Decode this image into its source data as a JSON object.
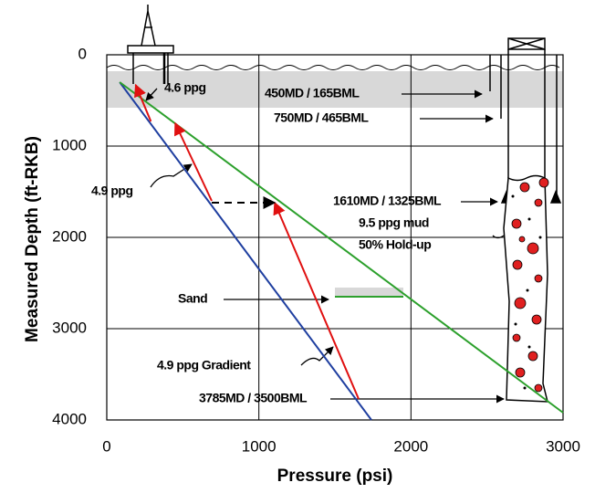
{
  "chart_data": {
    "type": "line",
    "x_label": "Pressure (psi)",
    "y_label": "Measured Depth (ft-RKB)",
    "xlim": [
      0,
      3000
    ],
    "xticks": [
      0,
      1000,
      2000,
      3000
    ],
    "ylim": [
      0,
      4000
    ],
    "yticks": [
      0,
      1000,
      2000,
      3000,
      4000
    ],
    "y_inverted": true,
    "grid": true,
    "series": [
      {
        "color": "#1f3fa0",
        "x": [
          85,
          1740
        ],
        "values": [
          300,
          4000
        ]
      },
      {
        "color": "#2ca02c",
        "x": [
          85,
          3000
        ],
        "values": [
          300,
          3920
        ]
      },
      {
        "color": "#2ca02c",
        "x": [
          1500,
          1950
        ],
        "values": [
          2650,
          2650
        ]
      },
      {
        "color": "#e01010",
        "x": [
          1656,
          1104
        ],
        "values": [
          3770,
          1620
        ],
        "arrow": true
      },
      {
        "color": "#e01010",
        "x": [
          690,
          450
        ],
        "values": [
          1600,
          750
        ],
        "arrow": true
      },
      {
        "color": "#e01010",
        "x": [
          290,
          190
        ],
        "values": [
          730,
          330
        ],
        "arrow": true
      },
      {
        "color": "#000000",
        "x": [
          690,
          1104
        ],
        "values": [
          1620,
          1620
        ],
        "dashed": true,
        "arrow": true
      }
    ],
    "annotations": [
      "4.6 ppg",
      "450MD / 165BML",
      "750MD / 465BML",
      "4.9 ppg",
      "1610MD / 1325BML",
      "9.5 ppg mud",
      "50% Hold-up",
      "Sand",
      "4.9 ppg Gradient",
      "3785MD / 3500BML"
    ]
  }
}
